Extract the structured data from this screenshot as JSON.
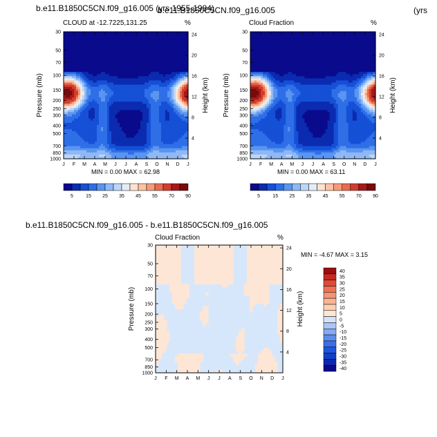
{
  "header": {
    "left_title": "b.e11.B1850C5CN.f09_g16.005 (yrs 1955-1984)",
    "right_title_overlap": "b.e11.B1850C5CN.f09_g16.005",
    "right_title_tail": "(yrs",
    "diff_title": "b.e11.B1850C5CN.f09_g16.005 - b.e11.B1850C5CN.f09_g16.005"
  },
  "chart_data": [
    {
      "type": "heatmap",
      "title": "CLOUD at -12.7225,131.25",
      "units": "%",
      "xlabel": "",
      "ylabel": "Pressure (mb)",
      "y2label": "Height (km)",
      "x_ticks": [
        "J",
        "F",
        "M",
        "A",
        "M",
        "J",
        "J",
        "A",
        "S",
        "O",
        "N",
        "D",
        "J"
      ],
      "y_ticks": [
        "30",
        "50",
        "70",
        "100",
        "150",
        "200",
        "250",
        "300",
        "400",
        "500",
        "700",
        "850",
        "1000"
      ],
      "y2_ticks": [
        "24",
        "20",
        "16",
        "12",
        "8",
        "4"
      ],
      "stats": "MIN =   0.00 MAX =  62.98",
      "colorbar_labels": [
        "5",
        "15",
        "25",
        "35",
        "45",
        "55",
        "70",
        "90"
      ],
      "features": [
        {
          "x": 1.3,
          "p": 160,
          "value": 60
        },
        {
          "x": 12.2,
          "p": 170,
          "value": 50
        }
      ]
    },
    {
      "type": "heatmap",
      "title": "Cloud Fraction",
      "units": "%",
      "xlabel": "",
      "ylabel": "Pressure (mb)",
      "y2label": "Height (km)",
      "x_ticks": [
        "J",
        "F",
        "M",
        "A",
        "M",
        "J",
        "J",
        "A",
        "S",
        "O",
        "N",
        "D",
        "J"
      ],
      "y_ticks": [
        "30",
        "50",
        "70",
        "100",
        "150",
        "200",
        "250",
        "300",
        "400",
        "500",
        "700",
        "850",
        "1000"
      ],
      "y2_ticks": [
        "24",
        "20",
        "16",
        "12",
        "8",
        "4"
      ],
      "stats": "MIN =   0.00 MAX =  63.11",
      "colorbar_labels": [
        "5",
        "15",
        "25",
        "35",
        "45",
        "55",
        "70",
        "90"
      ],
      "features": [
        {
          "x": 1.3,
          "p": 160,
          "value": 61
        },
        {
          "x": 12.2,
          "p": 170,
          "value": 51
        }
      ]
    },
    {
      "type": "heatmap",
      "title": "Cloud Fraction",
      "units": "%",
      "xlabel": "",
      "ylabel": "Pressure (mb)",
      "y2label": "Height (km)",
      "x_ticks": [
        "J",
        "F",
        "M",
        "A",
        "M",
        "J",
        "J",
        "A",
        "S",
        "O",
        "N",
        "D",
        "J"
      ],
      "y_ticks": [
        "30",
        "50",
        "70",
        "100",
        "150",
        "200",
        "250",
        "300",
        "400",
        "500",
        "700",
        "850",
        "1000"
      ],
      "y2_ticks": [
        "24",
        "20",
        "16",
        "12",
        "8",
        "4"
      ],
      "stats": "MIN =  -4.67 MAX =   3.15",
      "colorbar_labels": [
        "40",
        "35",
        "30",
        "25",
        "20",
        "15",
        "10",
        "5",
        "0",
        "-5",
        "-10",
        "-15",
        "-20",
        "-25",
        "-30",
        "-35",
        "-40"
      ]
    }
  ],
  "colors": {
    "abs_scale": [
      "#0a0a8c",
      "#0b2bb0",
      "#1550d6",
      "#2e6fe8",
      "#5a95f0",
      "#8fb9f5",
      "#bcd6f8",
      "#e3edf9",
      "#fde3cf",
      "#fbc3a3",
      "#f59b78",
      "#ea6a4d",
      "#d23d2d",
      "#a61a1a",
      "#7a0a0a"
    ],
    "diff_scale": [
      "#0a0a8c",
      "#0d27b2",
      "#123fc8",
      "#1e55de",
      "#3a6fe8",
      "#5d8ced",
      "#85a9f2",
      "#abc6f6",
      "#d4e3fa",
      "#fde6d5",
      "#fbd0b5",
      "#f8b596",
      "#f49575",
      "#ee7256",
      "#e04a37",
      "#c52a22",
      "#9a0f0f"
    ],
    "diff_bg": "#d7e7fb",
    "diff_patch": "#fde6d5"
  }
}
